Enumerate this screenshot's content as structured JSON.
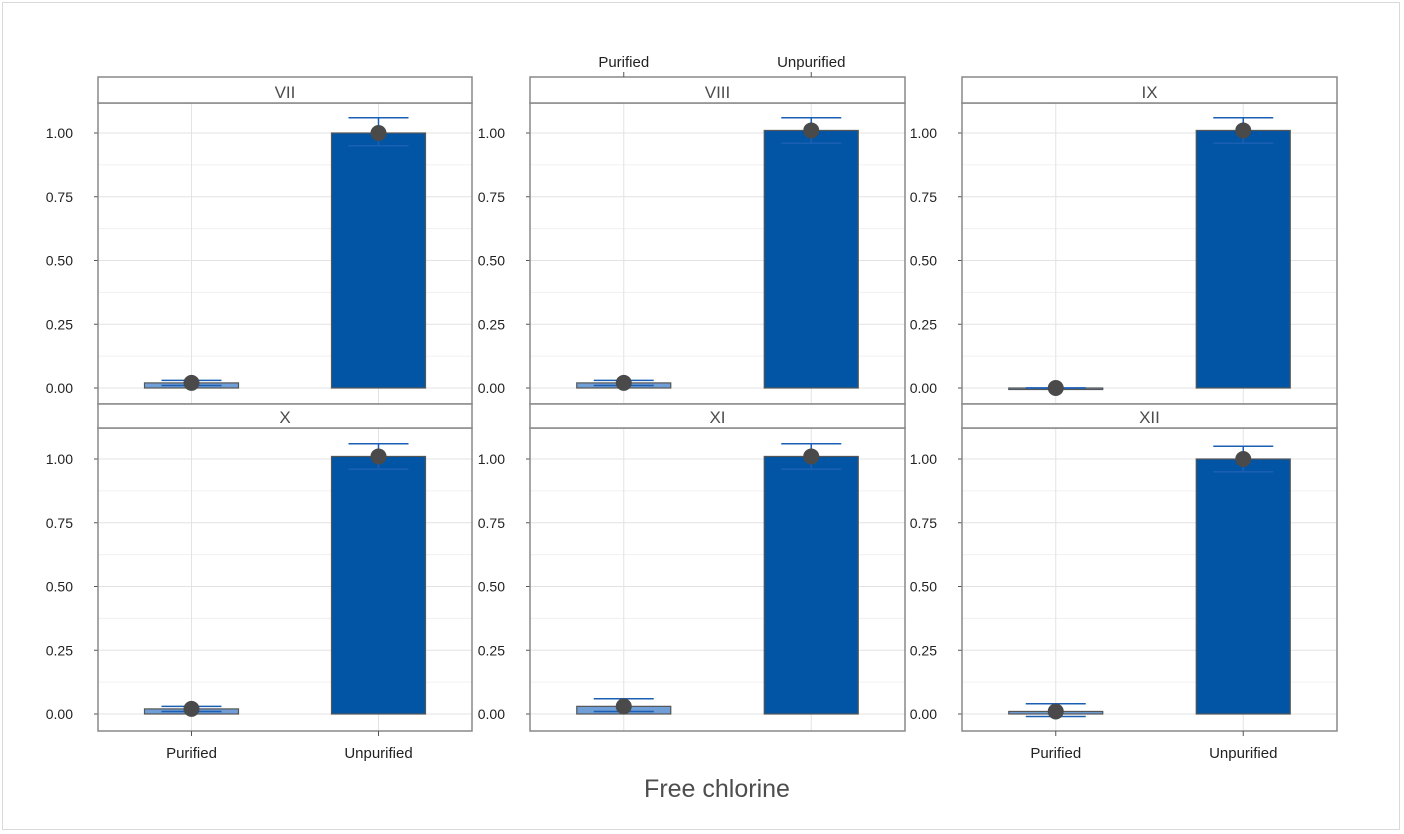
{
  "chart_data": {
    "type": "bar",
    "xlabel": "Free chlorine",
    "ylabel": "",
    "ylim": [
      -0.05,
      1.1
    ],
    "y_ticks": [
      "0.00",
      "0.25",
      "0.50",
      "0.75",
      "1.00"
    ],
    "categories": [
      "Purified",
      "Unpurified"
    ],
    "grid": true,
    "error_bars": true,
    "colors": {
      "purified": "#6f9fd6",
      "unpurified": "#0255a5",
      "point": "#4a4a4a",
      "errorbar": "#1a5fb4",
      "panel_border": "#888888"
    },
    "panels": [
      {
        "label": "VII",
        "values": [
          0.02,
          1.0
        ],
        "err_low": [
          0.01,
          0.95
        ],
        "err_high": [
          0.03,
          1.06
        ]
      },
      {
        "label": "VIII",
        "values": [
          0.02,
          1.01
        ],
        "err_low": [
          0.01,
          0.96
        ],
        "err_high": [
          0.03,
          1.06
        ]
      },
      {
        "label": "IX",
        "values": [
          0.0,
          1.01
        ],
        "err_low": [
          0.0,
          0.96
        ],
        "err_high": [
          0.0,
          1.06
        ]
      },
      {
        "label": "X",
        "values": [
          0.02,
          1.01
        ],
        "err_low": [
          0.01,
          0.96
        ],
        "err_high": [
          0.03,
          1.06
        ]
      },
      {
        "label": "XI",
        "values": [
          0.03,
          1.01
        ],
        "err_low": [
          0.01,
          0.96
        ],
        "err_high": [
          0.06,
          1.06
        ]
      },
      {
        "label": "XII",
        "values": [
          0.01,
          1.0
        ],
        "err_low": [
          -0.01,
          0.95
        ],
        "err_high": [
          0.04,
          1.05
        ]
      }
    ]
  }
}
